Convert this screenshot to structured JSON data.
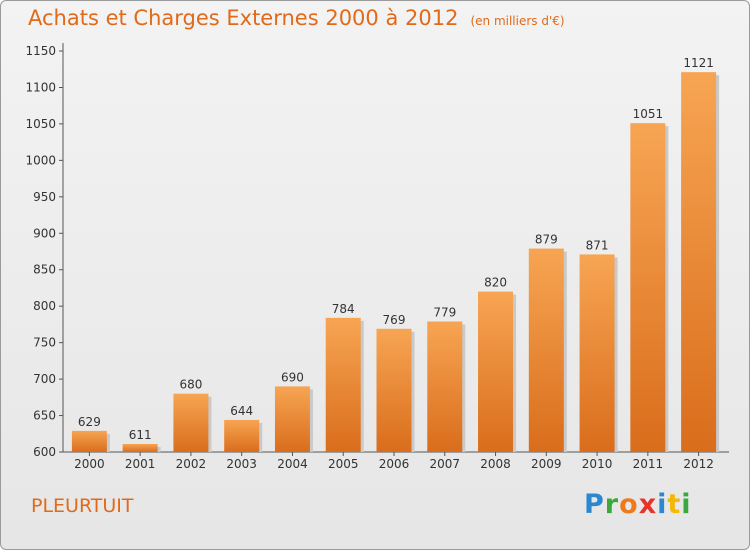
{
  "chart_data": {
    "type": "bar",
    "title": "Achats et Charges Externes 2000 à 2012",
    "subtitle": "(en milliers d'€)",
    "categories": [
      "2000",
      "2001",
      "2002",
      "2003",
      "2004",
      "2005",
      "2006",
      "2007",
      "2008",
      "2009",
      "2010",
      "2011",
      "2012"
    ],
    "values": [
      629,
      611,
      680,
      644,
      690,
      784,
      769,
      779,
      820,
      879,
      871,
      1051,
      1121
    ],
    "ylim": [
      600,
      1150
    ],
    "yticks": [
      600,
      650,
      700,
      750,
      800,
      850,
      900,
      950,
      1000,
      1050,
      1100,
      1150
    ],
    "grid": false,
    "bar_color": "#f0903a"
  },
  "footer": {
    "location": "PLEURTUIT",
    "brand": [
      "P",
      "r",
      "o",
      "x",
      "i",
      "t",
      "i"
    ],
    "brand_colors": [
      "#2b88d0",
      "#3aa83a",
      "#f07a1a",
      "#e8332a",
      "#2b88d0",
      "#f5b800",
      "#3aa83a"
    ]
  }
}
